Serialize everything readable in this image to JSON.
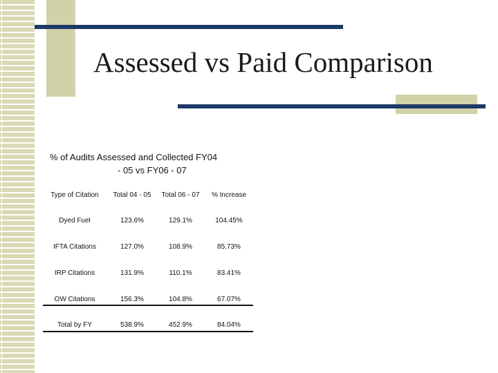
{
  "slide": {
    "title": "Assessed vs Paid Comparison"
  },
  "table": {
    "heading_line1": "% of Audits Assessed and Collected FY04",
    "heading_line2": "- 05 vs FY06 - 07",
    "columns": [
      "Type of Citation",
      "Total 04 - 05",
      "Total 06 - 07",
      "% Increase"
    ],
    "rows": [
      [
        "Dyed Fuel",
        "123.6%",
        "129.1%",
        "104.45%"
      ],
      [
        "IFTA Citations",
        "127.0%",
        "108.9%",
        "85.73%"
      ],
      [
        "IRP Citations",
        "131.9%",
        "110.1%",
        "83.41%"
      ],
      [
        "OW Citations",
        "156.3%",
        "104.8%",
        "67.07%"
      ],
      [
        "Total by FY",
        "538.9%",
        "452.9%",
        "84.04%"
      ]
    ]
  },
  "colors": {
    "navy_bar": "#1c3a66",
    "khaki_block": "#d2d2a8",
    "stripes": "#d9d9b4"
  }
}
